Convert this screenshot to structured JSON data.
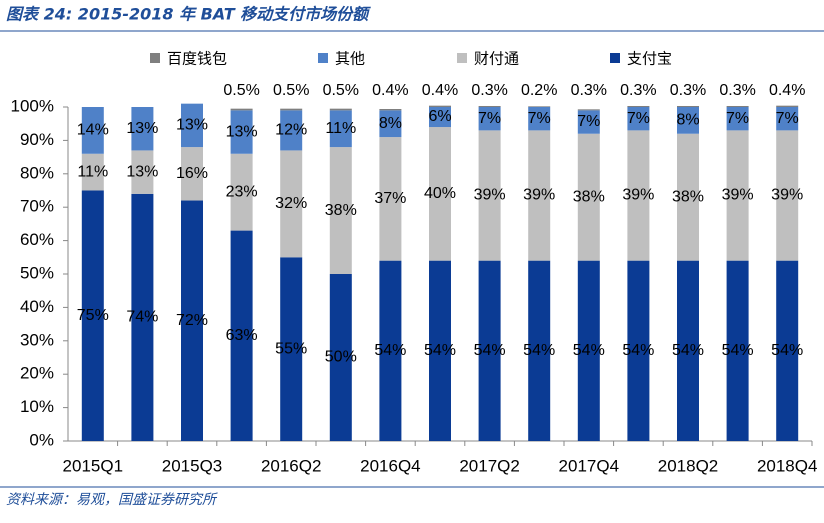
{
  "chart_data": {
    "type": "stacked_bar",
    "title": "图表 24: 2015-2018 年 BAT 移动支付市场份额",
    "source": "资料来源：易观，国盛证券研究所",
    "categories": [
      "2015Q1",
      null,
      "2015Q3",
      null,
      "2016Q2",
      null,
      "2016Q4",
      null,
      "2017Q2",
      null,
      "2017Q4",
      null,
      "2018Q2",
      null,
      "2018Q4"
    ],
    "series": [
      {
        "name": "支付宝",
        "color": "#0b3b94",
        "values": [
          75,
          74,
          72,
          63,
          55,
          50,
          54,
          54,
          54,
          54,
          54,
          54,
          54,
          54,
          54
        ],
        "value_labels": [
          "75%",
          "74%",
          "72%",
          "63%",
          "55%",
          "50%",
          "54%",
          "54%",
          "54%",
          "54%",
          "54%",
          "54%",
          "54%",
          "54%",
          "54%"
        ]
      },
      {
        "name": "财付通",
        "color": "#bfbfbf",
        "values": [
          11,
          13,
          16,
          23,
          32,
          38,
          37,
          40,
          39,
          39,
          38,
          39,
          38,
          39,
          39
        ],
        "value_labels": [
          "11%",
          "13%",
          "16%",
          "23%",
          "32%",
          "38%",
          "37%",
          "40%",
          "39%",
          "39%",
          "38%",
          "39%",
          "38%",
          "39%",
          "39%"
        ]
      },
      {
        "name": "其他",
        "color": "#4f81c8",
        "values": [
          14,
          13,
          13,
          13,
          12,
          11,
          8,
          6,
          7,
          7,
          7,
          7,
          8,
          7,
          7
        ],
        "value_labels": [
          "14%",
          "13%",
          "13%",
          "13%",
          "12%",
          "11%",
          "8%",
          "6%",
          "7%",
          "7%",
          "7%",
          "7%",
          "8%",
          "7%",
          "7%"
        ]
      },
      {
        "name": "百度钱包",
        "color": "#7f7f7f",
        "values": [
          null,
          null,
          null,
          0.5,
          0.5,
          0.5,
          0.4,
          0.4,
          0.3,
          0.2,
          0.3,
          0.3,
          0.3,
          0.3,
          0.4
        ],
        "value_labels": [
          null,
          null,
          null,
          "0.5%",
          "0.5%",
          "0.5%",
          "0.4%",
          "0.4%",
          "0.3%",
          "0.2%",
          "0.3%",
          "0.3%",
          "0.3%",
          "0.3%",
          "0.4%"
        ]
      }
    ],
    "ylim": [
      0,
      100
    ],
    "yticks": [
      {
        "value": 0,
        "label": "0%"
      },
      {
        "value": 10,
        "label": "10%"
      },
      {
        "value": 20,
        "label": "20%"
      },
      {
        "value": 30,
        "label": "30%"
      },
      {
        "value": 40,
        "label": "40%"
      },
      {
        "value": 50,
        "label": "50%"
      },
      {
        "value": 60,
        "label": "60%"
      },
      {
        "value": 70,
        "label": "70%"
      },
      {
        "value": 80,
        "label": "80%"
      },
      {
        "value": 90,
        "label": "90%"
      },
      {
        "value": 100,
        "label": "100%"
      }
    ],
    "legend": "top"
  }
}
